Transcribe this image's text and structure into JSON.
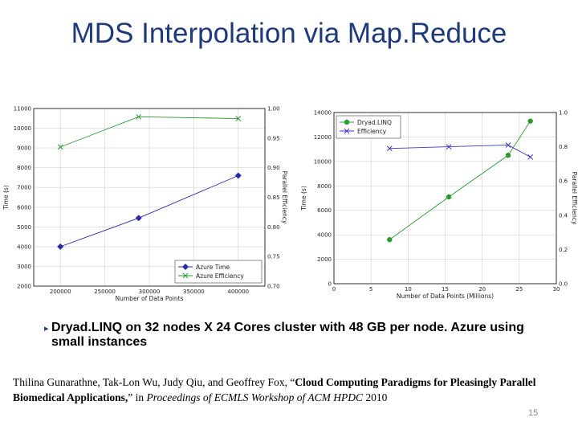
{
  "slide": {
    "title": "MDS Interpolation via Map.Reduce",
    "bullet": "Dryad.LINQ on 32 nodes X 24 Cores cluster with 48 GB per node. Azure using small instances",
    "citation": {
      "authors": "Thilina Gunarathne, Tak-Lon Wu, Judy Qiu, and Geoffrey Fox, “",
      "paper_title": "Cloud Computing Paradigms for Pleasingly Parallel Biomedical Applications,",
      "mid": "” in ",
      "venue": "Proceedings of ECMLS Workshop of ACM HPDC",
      "year": " 2010"
    },
    "slide_number": "15"
  },
  "colors": {
    "time_series": "#2a2aa8",
    "efficiency_series": "#2e9a2e",
    "dryad_series": "#2e9a2e",
    "dryad_eff_series": "#3a3ac0",
    "title": "#1f3a7a"
  },
  "chart_data": [
    {
      "type": "line",
      "xlabel": "Number of Data Points",
      "ylabel": "Time (s)",
      "y2label": "Parallel Efficiency",
      "xlim": [
        170000,
        430000
      ],
      "xticks": [
        200000,
        250000,
        300000,
        350000,
        400000
      ],
      "xtick_labels": [
        "200000",
        "250000",
        "300000",
        "350000",
        "400000"
      ],
      "ylim": [
        2000,
        11000
      ],
      "yticks": [
        2000,
        3000,
        4000,
        5000,
        6000,
        7000,
        8000,
        9000,
        10000,
        11000
      ],
      "ytick_labels": [
        "2000",
        "3000",
        "4000",
        "5000",
        "6000",
        "7000",
        "8000",
        "9000",
        "10000",
        "11000"
      ],
      "y2lim": [
        0.7,
        1.0
      ],
      "y2ticks": [
        0.7,
        0.75,
        0.8,
        0.85,
        0.9,
        0.95,
        1.0
      ],
      "y2tick_labels": [
        "0.70",
        "0.75",
        "0.80",
        "0.85",
        "0.90",
        "0.95",
        "1.00"
      ],
      "legend_position": "bottom-right",
      "series": [
        {
          "name": "Azure Time",
          "axis": "left",
          "marker": "diamond",
          "x": [
            200000,
            288000,
            400000
          ],
          "values": [
            4000,
            5450,
            7600
          ]
        },
        {
          "name": "Azure Efficiency",
          "axis": "right",
          "marker": "x",
          "x": [
            200000,
            288000,
            400000
          ],
          "values": [
            0.935,
            0.986,
            0.983
          ]
        }
      ]
    },
    {
      "type": "line",
      "xlabel": "Number of Data Points (Millions)",
      "ylabel": "Time (s)",
      "y2label": "Parallel Efficiency",
      "xlim": [
        0,
        30
      ],
      "xticks": [
        0,
        5,
        10,
        15,
        20,
        25,
        30
      ],
      "xtick_labels": [
        "0",
        "5",
        "10",
        "15",
        "20",
        "25",
        "30"
      ],
      "ylim": [
        0,
        14000
      ],
      "yticks": [
        0,
        2000,
        4000,
        6000,
        8000,
        10000,
        12000,
        14000
      ],
      "ytick_labels": [
        "0",
        "2000",
        "4000",
        "6000",
        "8000",
        "10000",
        "12000",
        "14000"
      ],
      "y2lim": [
        0,
        1.0
      ],
      "y2ticks": [
        0,
        0.2,
        0.4,
        0.6,
        0.8,
        1.0
      ],
      "y2tick_labels": [
        "0.0",
        "0.2",
        "0.4",
        "0.6",
        "0.8",
        "1.0"
      ],
      "legend_position": "top-left",
      "series": [
        {
          "name": "Dryad.LINQ",
          "axis": "left",
          "marker": "circle",
          "x": [
            7.5,
            15.5,
            23.5,
            26.5
          ],
          "values": [
            3600,
            7100,
            10500,
            13300
          ]
        },
        {
          "name": "Efficiency",
          "axis": "right",
          "marker": "x",
          "x": [
            7.5,
            15.5,
            23.5,
            26.5
          ],
          "values": [
            0.79,
            0.8,
            0.81,
            0.74
          ]
        }
      ]
    }
  ]
}
